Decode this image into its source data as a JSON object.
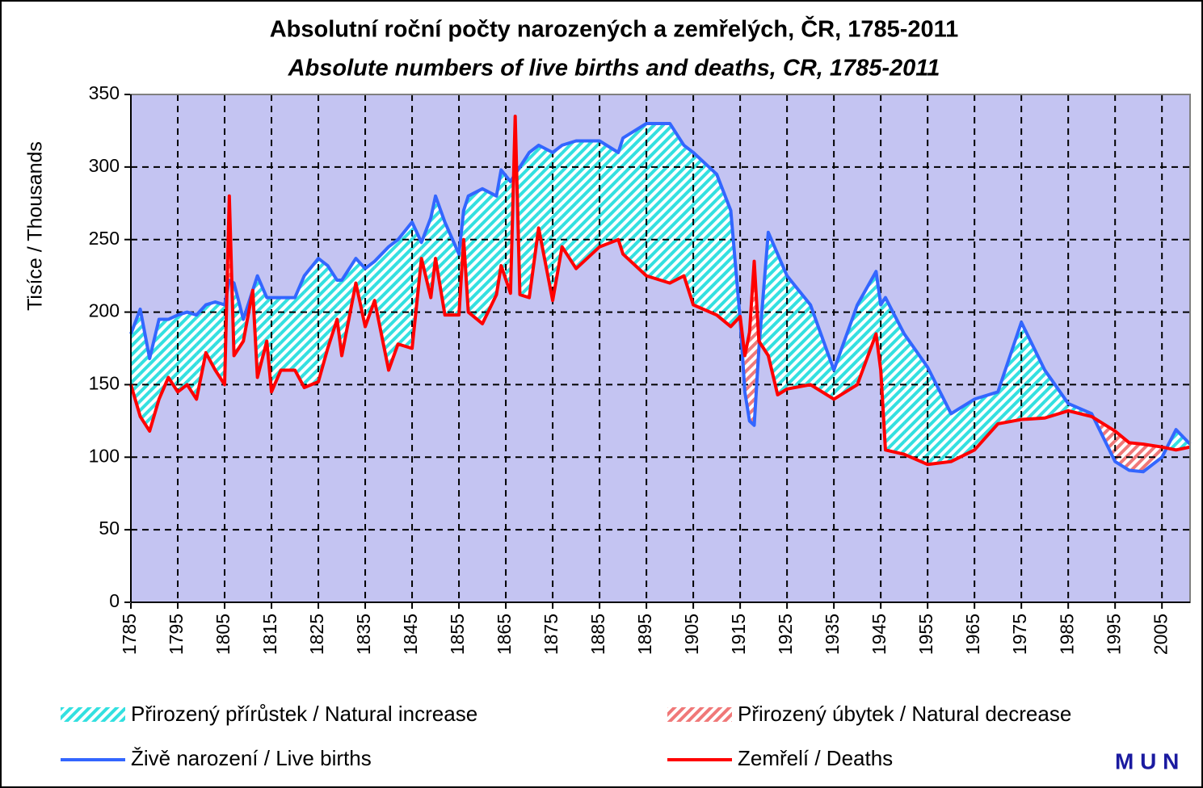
{
  "chart_data": {
    "type": "line",
    "title": "Absolutní roční počty narozených a zemřelých, ČR, 1785-2011",
    "subtitle": "Absolute numbers of live births and deaths, CR, 1785-2011",
    "y_label": "Tisíce / Thousands",
    "x": [
      1785,
      1787,
      1789,
      1791,
      1793,
      1795,
      1797,
      1799,
      1801,
      1803,
      1805,
      1806,
      1807,
      1809,
      1811,
      1812,
      1814,
      1815,
      1817,
      1820,
      1822,
      1825,
      1827,
      1829,
      1830,
      1833,
      1835,
      1837,
      1840,
      1842,
      1845,
      1847,
      1849,
      1850,
      1852,
      1855,
      1856,
      1857,
      1860,
      1863,
      1864,
      1866,
      1867,
      1868,
      1870,
      1872,
      1875,
      1877,
      1880,
      1885,
      1889,
      1890,
      1895,
      1900,
      1903,
      1905,
      1910,
      1913,
      1915,
      1916,
      1917,
      1918,
      1919,
      1921,
      1923,
      1925,
      1930,
      1935,
      1940,
      1944,
      1945,
      1946,
      1950,
      1955,
      1960,
      1965,
      1970,
      1975,
      1980,
      1985,
      1990,
      1995,
      1998,
      2001,
      2005,
      2008,
      2011
    ],
    "series": [
      {
        "name": "Živě narození / Live births",
        "color": "#3366ff",
        "values": [
          185,
          202,
          168,
          195,
          195,
          198,
          200,
          198,
          205,
          207,
          205,
          222,
          220,
          195,
          215,
          225,
          210,
          210,
          210,
          210,
          225,
          237,
          232,
          222,
          222,
          237,
          230,
          235,
          245,
          250,
          262,
          248,
          265,
          280,
          262,
          240,
          270,
          280,
          285,
          280,
          298,
          290,
          295,
          300,
          310,
          315,
          310,
          315,
          318,
          318,
          310,
          320,
          330,
          330,
          315,
          310,
          295,
          270,
          195,
          145,
          125,
          122,
          175,
          255,
          240,
          225,
          205,
          160,
          205,
          228,
          205,
          210,
          185,
          162,
          130,
          140,
          145,
          193,
          160,
          137,
          130,
          97,
          91,
          90,
          100,
          119,
          109
        ]
      },
      {
        "name": "Zemřelí / Deaths",
        "color": "#ff0000",
        "values": [
          150,
          128,
          118,
          140,
          155,
          145,
          150,
          140,
          172,
          160,
          150,
          280,
          170,
          180,
          215,
          155,
          180,
          145,
          160,
          160,
          148,
          152,
          175,
          195,
          170,
          220,
          190,
          208,
          160,
          178,
          175,
          237,
          210,
          237,
          198,
          198,
          250,
          200,
          192,
          212,
          232,
          213,
          335,
          212,
          210,
          258,
          208,
          245,
          230,
          245,
          250,
          240,
          225,
          220,
          225,
          205,
          198,
          190,
          197,
          170,
          186,
          235,
          180,
          170,
          143,
          147,
          150,
          140,
          150,
          185,
          160,
          105,
          102,
          95,
          97,
          105,
          123,
          126,
          127,
          132,
          128,
          118,
          110,
          109,
          107,
          105,
          107
        ]
      }
    ],
    "areas": [
      {
        "name": "Přirozený přírůstek / Natural increase",
        "color": "#33e0e0"
      },
      {
        "name": "Přirozený úbytek / Natural decrease",
        "color": "#f07878"
      }
    ],
    "xlim": [
      1785,
      2011
    ],
    "xticks": [
      1785,
      1795,
      1805,
      1815,
      1825,
      1835,
      1845,
      1855,
      1865,
      1875,
      1885,
      1895,
      1905,
      1915,
      1925,
      1935,
      1945,
      1955,
      1965,
      1975,
      1985,
      1995,
      2005
    ],
    "ylim": [
      0,
      350
    ],
    "yticks": [
      0,
      50,
      100,
      150,
      200,
      250,
      300,
      350
    ],
    "grid": true,
    "logo": "M U N"
  }
}
